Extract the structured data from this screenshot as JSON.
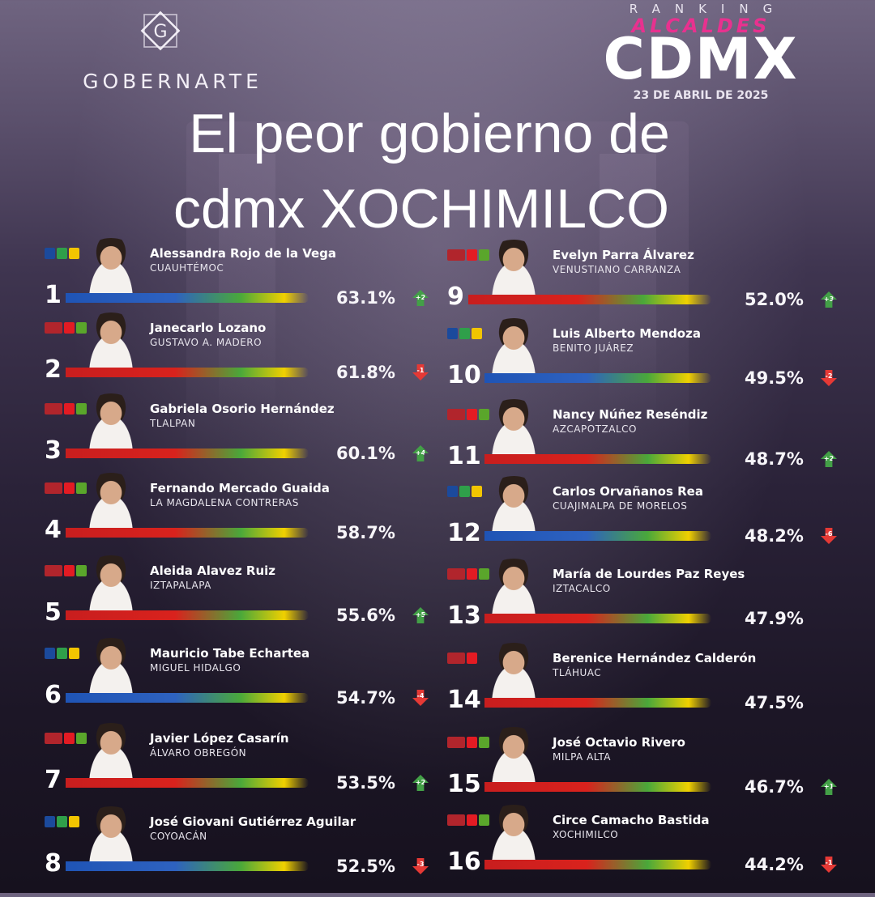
{
  "brand": {
    "logo_letter": "G",
    "name": "GOBERNARTE"
  },
  "ranking": {
    "ranking_label": "RANKING",
    "title": "ALCALDES",
    "city": "CDMX",
    "date": "23 DE ABRIL DE 2025"
  },
  "headline": {
    "line1": "El peor gobierno de",
    "line2": "cdmx XOCHIMILCO"
  },
  "colors": {
    "accent_pink": "#e8318f",
    "bar_red": "#d9221d",
    "bar_blue": "#1f54b5",
    "up_green": "#43a047",
    "down_red": "#e53935"
  },
  "entries": [
    {
      "rank": "1",
      "name": "Alessandra Rojo de la Vega",
      "district": "CUAUHTÉMOC",
      "percent": "63.1%",
      "change": "+2",
      "direction": "up",
      "coalition": "PAN-PRI-PRD",
      "bar_color": "blue"
    },
    {
      "rank": "2",
      "name": "Janecarlo Lozano",
      "district": "GUSTAVO A. MADERO",
      "percent": "61.8%",
      "change": "-1",
      "direction": "down",
      "coalition": "MORENA-PT-PVEM",
      "bar_color": "red"
    },
    {
      "rank": "3",
      "name": "Gabriela Osorio Hernández",
      "district": "TLALPAN",
      "percent": "60.1%",
      "change": "+4",
      "direction": "up",
      "coalition": "MORENA-PT-PVEM",
      "bar_color": "red"
    },
    {
      "rank": "4",
      "name": "Fernando Mercado Guaida",
      "district": "LA MAGDALENA CONTRERAS",
      "percent": "58.7%",
      "change": "",
      "direction": "none",
      "coalition": "MORENA-PT-PVEM",
      "bar_color": "red"
    },
    {
      "rank": "5",
      "name": "Aleida Alavez Ruiz",
      "district": "IZTAPALAPA",
      "percent": "55.6%",
      "change": "+5",
      "direction": "up",
      "coalition": "MORENA-PT-PVEM",
      "bar_color": "red"
    },
    {
      "rank": "6",
      "name": "Mauricio Tabe Echartea",
      "district": "MIGUEL HIDALGO",
      "percent": "54.7%",
      "change": "-4",
      "direction": "down",
      "coalition": "PAN-PRI-PRD",
      "bar_color": "blue"
    },
    {
      "rank": "7",
      "name": "Javier López Casarín",
      "district": "ÁLVARO OBREGÓN",
      "percent": "53.5%",
      "change": "+2",
      "direction": "up",
      "coalition": "MORENA-PT-PVEM",
      "bar_color": "red"
    },
    {
      "rank": "8",
      "name": "José Giovani Gutiérrez Aguilar",
      "district": "COYOACÁN",
      "percent": "52.5%",
      "change": "-3",
      "direction": "down",
      "coalition": "PAN-PRI-PRD",
      "bar_color": "blue"
    },
    {
      "rank": "9",
      "name": "Evelyn Parra Álvarez",
      "district": "VENUSTIANO CARRANZA",
      "percent": "52.0%",
      "change": "+3",
      "direction": "up",
      "coalition": "MORENA-PT-PVEM",
      "bar_color": "red"
    },
    {
      "rank": "10",
      "name": "Luis Alberto Mendoza",
      "district": "BENITO JUÁREZ",
      "percent": "49.5%",
      "change": "-2",
      "direction": "down",
      "coalition": "PAN-PRI-PRD",
      "bar_color": "blue"
    },
    {
      "rank": "11",
      "name": "Nancy Núñez Reséndiz",
      "district": "AZCAPOTZALCO",
      "percent": "48.7%",
      "change": "+2",
      "direction": "up",
      "coalition": "MORENA-PT-PVEM",
      "bar_color": "red"
    },
    {
      "rank": "12",
      "name": "Carlos Orvañanos Rea",
      "district": "CUAJIMALPA DE MORELOS",
      "percent": "48.2%",
      "change": "-6",
      "direction": "down",
      "coalition": "PAN-PRI-PRD",
      "bar_color": "blue"
    },
    {
      "rank": "13",
      "name": "María de Lourdes Paz Reyes",
      "district": "IZTACALCO",
      "percent": "47.9%",
      "change": "",
      "direction": "none",
      "coalition": "MORENA-PT-PVEM",
      "bar_color": "red"
    },
    {
      "rank": "14",
      "name": "Berenice Hernández Calderón",
      "district": "TLÁHUAC",
      "percent": "47.5%",
      "change": "",
      "direction": "none",
      "coalition": "MORENA-PT",
      "bar_color": "red"
    },
    {
      "rank": "15",
      "name": "José Octavio Rivero",
      "district": "MILPA ALTA",
      "percent": "46.7%",
      "change": "+1",
      "direction": "up",
      "coalition": "MORENA-PT-PVEM",
      "bar_color": "red"
    },
    {
      "rank": "16",
      "name": "Circe Camacho Bastida",
      "district": "XOCHIMILCO",
      "percent": "44.2%",
      "change": "-1",
      "direction": "down",
      "coalition": "MORENA-PT-PVEM",
      "bar_color": "red"
    }
  ]
}
